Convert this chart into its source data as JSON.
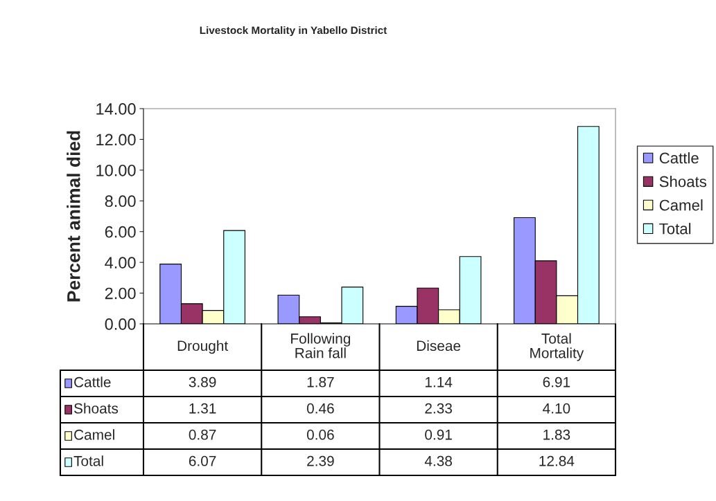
{
  "chart_data": {
    "type": "bar",
    "title": "Livestock Mortality in Yabello District",
    "ylabel": "Percent animal died",
    "categories": [
      "Drought",
      "Following\nRain fall",
      "Diseae",
      "Total\nMortality"
    ],
    "series": [
      {
        "name": "Cattle",
        "color": "#9999ff",
        "values": [
          3.89,
          1.87,
          1.14,
          6.91
        ],
        "value_labels": [
          "3.89",
          "1.87",
          "1.14",
          "6.91"
        ]
      },
      {
        "name": "Shoats",
        "color": "#993366",
        "values": [
          1.31,
          0.46,
          2.33,
          4.1
        ],
        "value_labels": [
          "1.31",
          "0.46",
          "2.33",
          "4.10"
        ]
      },
      {
        "name": "Camel",
        "color": "#ffffcc",
        "values": [
          0.87,
          0.06,
          0.91,
          1.83
        ],
        "value_labels": [
          "0.87",
          "0.06",
          "0.91",
          "1.83"
        ]
      },
      {
        "name": "Total",
        "color": "#ccffff",
        "values": [
          6.07,
          2.39,
          4.38,
          12.84
        ],
        "value_labels": [
          "6.07",
          "2.39",
          "4.38",
          "12.84"
        ]
      }
    ],
    "ylim": [
      0,
      14
    ],
    "yticks": [
      {
        "value": 0,
        "label": "0.00"
      },
      {
        "value": 2,
        "label": "2.00"
      },
      {
        "value": 4,
        "label": "4.00"
      },
      {
        "value": 6,
        "label": "6.00"
      },
      {
        "value": 8,
        "label": "8.00"
      },
      {
        "value": 10,
        "label": "10.00"
      },
      {
        "value": 12,
        "label": "12.00"
      },
      {
        "value": 14,
        "label": "14.00"
      }
    ],
    "grid": false,
    "legend": "right"
  }
}
